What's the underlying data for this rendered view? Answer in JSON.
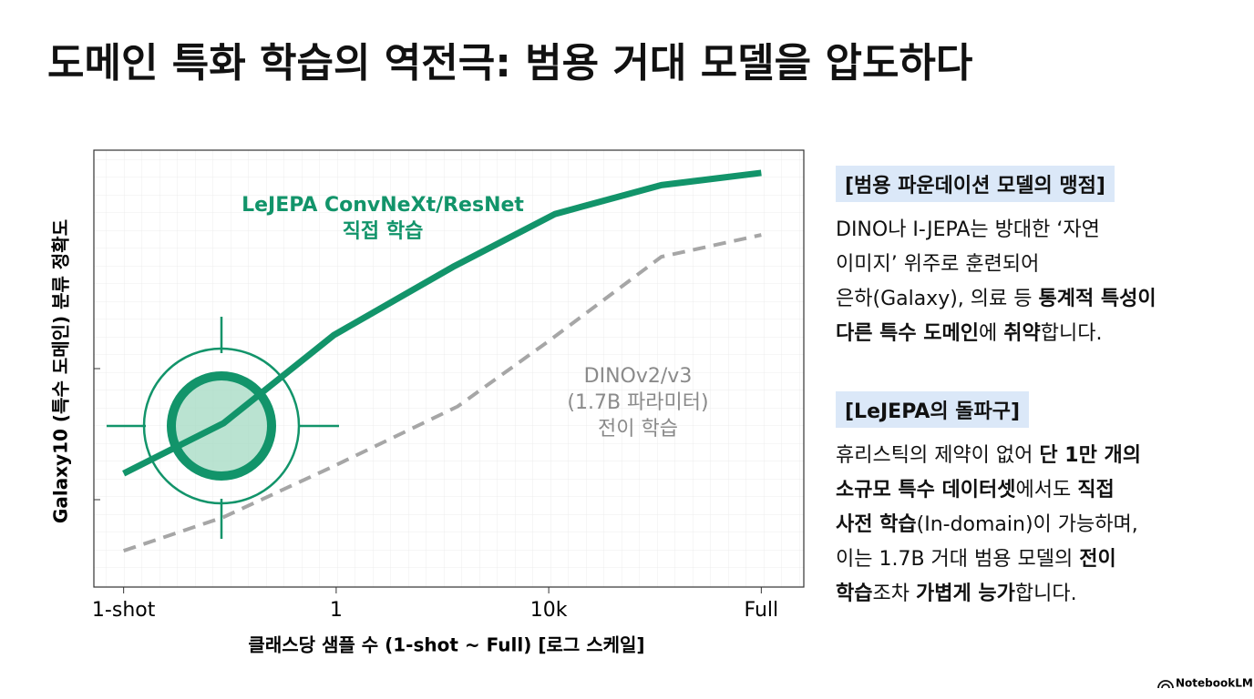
{
  "title": "도메인 특화 학습의 역전극: 범용 거대 모델을 압도하다",
  "chart_data": {
    "type": "line",
    "x_label": "클래스당 샘플 수 (1-shot ~ Full) [로그 스케일]",
    "y_label": "Galaxy10 (특수 도메인) 분류 정확도",
    "xlim": [
      -0.14,
      3.2
    ],
    "xticks": [
      {
        "value": 0,
        "label": "1-shot"
      },
      {
        "value": 1,
        "label": "1"
      },
      {
        "value": 2,
        "label": "10k"
      },
      {
        "value": 3,
        "label": "Full"
      }
    ],
    "ylim": [
      0,
      100
    ],
    "yticks": [
      20,
      50
    ],
    "grid": true,
    "series": [
      {
        "name": "LeJEPA ConvNeXt/ResNet 직접 학습",
        "color": "#12946a",
        "dashed": false,
        "x": [
          0,
          0.47,
          0.99,
          1.55,
          2.03,
          2.53,
          3.0
        ],
        "values": [
          26,
          37.5,
          57.7,
          73.3,
          85.4,
          92,
          94.8
        ]
      },
      {
        "name": "DINOv2/v3 (1.7B 파라미터) 전이 학습",
        "color": "#a6a6a6",
        "dashed": true,
        "x": [
          0,
          0.47,
          0.99,
          1.57,
          2.0,
          2.53,
          3.0
        ],
        "values": [
          8.3,
          16,
          27.7,
          41.3,
          56.3,
          75.6,
          80.6
        ]
      }
    ],
    "annotations": [
      {
        "lines": [
          "LeJEPA ConvNeXt/ResNet",
          "직접 학습"
        ],
        "color": "#12946a"
      },
      {
        "lines": [
          "DINOv2/v3",
          "(1.7B 파라미터)",
          "전이 학습"
        ],
        "color": "#8a8a8a"
      }
    ]
  },
  "side": [
    {
      "heading": "[범용 파운데이션 모델의 맹점]",
      "lines": [
        [
          {
            "t": "DINO나 I-JEPA는 방대한 ‘자연",
            "b": false
          }
        ],
        [
          {
            "t": "이미지’ 위주로 훈련되어",
            "b": false
          }
        ],
        [
          {
            "t": "은하(Galaxy), 의료 등 ",
            "b": false
          },
          {
            "t": "통계적 특성이",
            "b": true
          }
        ],
        [
          {
            "t": "다른 특수 도메인",
            "b": true
          },
          {
            "t": "에 ",
            "b": false
          },
          {
            "t": "취약",
            "b": true
          },
          {
            "t": "합니다.",
            "b": false
          }
        ]
      ]
    },
    {
      "heading": "[LeJEPA의 돌파구]",
      "lines": [
        [
          {
            "t": "휴리스틱의 제약이 없어 ",
            "b": false
          },
          {
            "t": "단 1만 개의",
            "b": true
          }
        ],
        [
          {
            "t": "소규모 특수 데이터셋",
            "b": true
          },
          {
            "t": "에서도 ",
            "b": false
          },
          {
            "t": "직접",
            "b": true
          }
        ],
        [
          {
            "t": "사전 학습",
            "b": true
          },
          {
            "t": "(In-domain)이 가능하며,",
            "b": false
          }
        ],
        [
          {
            "t": "이는 1.7B 거대 범용 모델의 ",
            "b": false
          },
          {
            "t": "전이",
            "b": true
          }
        ],
        [
          {
            "t": "학습",
            "b": true
          },
          {
            "t": "조차 ",
            "b": false
          },
          {
            "t": "가볍게 능가",
            "b": true
          },
          {
            "t": "합니다.",
            "b": false
          }
        ]
      ]
    }
  ],
  "footer": "NotebookLM"
}
